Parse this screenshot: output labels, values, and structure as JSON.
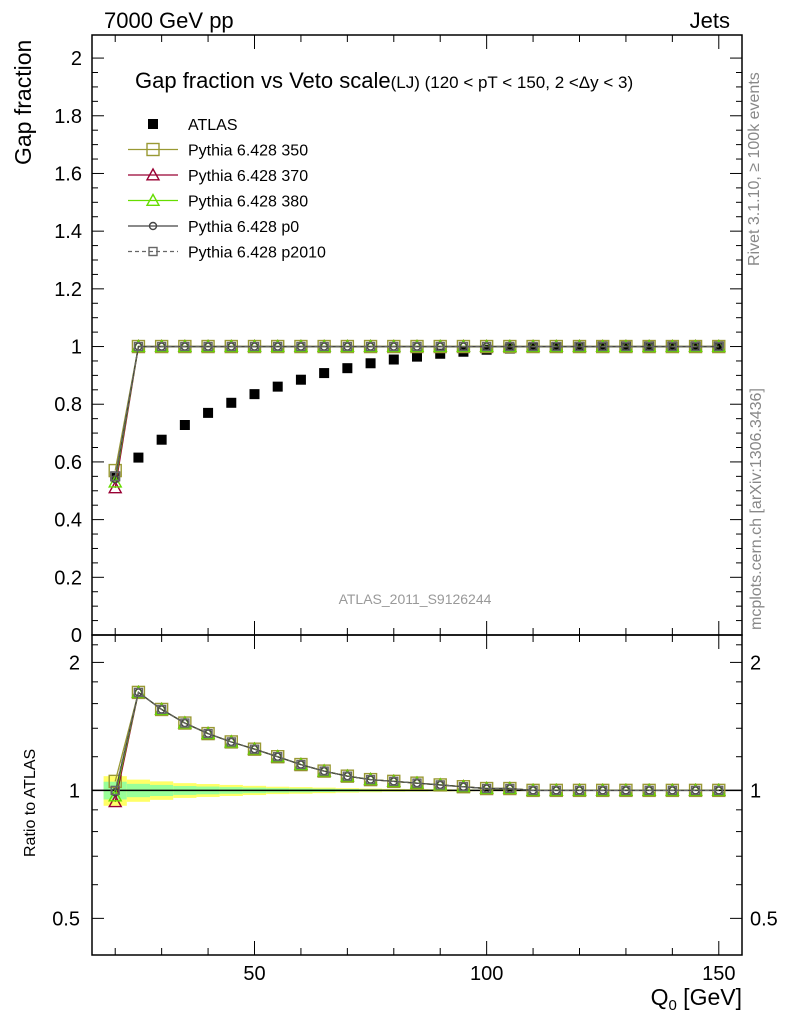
{
  "header": {
    "energy": "7000 GeV pp",
    "category": "Jets",
    "rivet_info": "Rivet 3.1.10, ≥ 100k events",
    "mcplots_info": "mcplots.cern.ch [arXiv:1306.3436]"
  },
  "chart_data": [
    {
      "type": "line",
      "panel": "main",
      "title": "Gap fraction vs Veto scale",
      "subtitle": "(LJ) (120 < pT < 150, 2 <Δy < 3)",
      "xlabel": "Q_0 [GeV]",
      "ylabel": "Gap fraction",
      "watermark": "ATLAS_2011_S9126244",
      "xlim": [
        15,
        155
      ],
      "ylim": [
        0,
        2.08
      ],
      "yticks": [
        "0",
        "0.2",
        "0.4",
        "0.6",
        "0.8",
        "1",
        "1.2",
        "1.4",
        "1.6",
        "1.8",
        "2"
      ],
      "legend_position": "top-left",
      "x": [
        20,
        25,
        30,
        35,
        40,
        45,
        50,
        55,
        60,
        65,
        70,
        75,
        80,
        85,
        90,
        95,
        100,
        105,
        110,
        115,
        120,
        125,
        130,
        135,
        140,
        145,
        150
      ],
      "series": [
        {
          "name": "ATLAS",
          "color": "#000000",
          "marker": "filled-square",
          "values": [
            0.55,
            0.615,
            0.677,
            0.728,
            0.77,
            0.805,
            0.835,
            0.861,
            0.885,
            0.908,
            0.925,
            0.942,
            0.955,
            0.965,
            0.975,
            0.982,
            0.989,
            0.993,
            0.996,
            0.998,
            0.999,
            1.0,
            1.0,
            1.0,
            1.0,
            1.0,
            1.0
          ]
        },
        {
          "name": "Pythia 6.428 350",
          "color": "#999933",
          "marker": "open-square",
          "values": [
            0.57,
            1,
            1,
            1,
            1,
            1,
            1,
            1,
            1,
            1,
            1,
            1,
            1,
            1,
            1,
            1,
            1,
            1,
            1,
            1,
            1,
            1,
            1,
            1,
            1,
            1,
            1
          ]
        },
        {
          "name": "Pythia 6.428 370",
          "color": "#990033",
          "marker": "open-triangle",
          "values": [
            0.51,
            1,
            1,
            1,
            1,
            1,
            1,
            1,
            1,
            1,
            1,
            1,
            1,
            1,
            1,
            1,
            1,
            1,
            1,
            1,
            1,
            1,
            1,
            1,
            1,
            1,
            1
          ]
        },
        {
          "name": "Pythia 6.428 380",
          "color": "#66dd00",
          "marker": "open-triangle",
          "values": [
            0.53,
            1,
            1,
            1,
            1,
            1,
            1,
            1,
            1,
            1,
            1,
            1,
            1,
            1,
            1,
            1,
            1,
            1,
            1,
            1,
            1,
            1,
            1,
            1,
            1,
            1,
            1
          ]
        },
        {
          "name": "Pythia 6.428 p0",
          "color": "#444444",
          "marker": "open-circle",
          "values": [
            0.54,
            1,
            1,
            1,
            1,
            1,
            1,
            1,
            1,
            1,
            1,
            1,
            1,
            1,
            1,
            1,
            1,
            1,
            1,
            1,
            1,
            1,
            1,
            1,
            1,
            1,
            1
          ]
        },
        {
          "name": "Pythia 6.428 p2010",
          "color": "#666666",
          "marker": "open-square-dashed",
          "values": [
            0.55,
            1,
            1,
            1,
            1,
            1,
            1,
            1,
            1,
            1,
            1,
            1,
            1,
            1,
            1,
            1,
            1,
            1,
            1,
            1,
            1,
            1,
            1,
            1,
            1,
            1,
            1
          ]
        }
      ]
    },
    {
      "type": "line",
      "panel": "ratio",
      "ylabel": "Ratio to ATLAS",
      "xlabel": "Q_0 [GeV]",
      "xlim": [
        15,
        155
      ],
      "ylim": [
        0.41,
        2.32
      ],
      "log_scale_y": true,
      "yticks": [
        "0.5",
        "1",
        "2"
      ],
      "xticks": [
        "50",
        "100",
        "150"
      ],
      "band_colors": [
        "#ffff66",
        "#99ff99"
      ],
      "x": [
        20,
        25,
        30,
        35,
        40,
        45,
        50,
        55,
        60,
        65,
        70,
        75,
        80,
        85,
        90,
        95,
        100,
        105,
        110,
        115,
        120,
        125,
        130,
        135,
        140,
        145,
        150
      ],
      "series": [
        {
          "name": "Pythia 6.428 350",
          "color": "#999933",
          "marker": "open-square",
          "values": [
            1.05,
            1.7,
            1.55,
            1.44,
            1.36,
            1.3,
            1.25,
            1.2,
            1.15,
            1.11,
            1.08,
            1.06,
            1.05,
            1.04,
            1.03,
            1.02,
            1.01,
            1.01,
            1.0,
            1.0,
            1.0,
            1.0,
            1.0,
            1.0,
            1.0,
            1.0,
            1.0
          ]
        },
        {
          "name": "Pythia 6.428 370",
          "color": "#990033",
          "marker": "open-triangle",
          "values": [
            0.94,
            1.7,
            1.55,
            1.44,
            1.36,
            1.3,
            1.25,
            1.2,
            1.15,
            1.11,
            1.08,
            1.06,
            1.05,
            1.04,
            1.03,
            1.02,
            1.01,
            1.01,
            1.0,
            1.0,
            1.0,
            1.0,
            1.0,
            1.0,
            1.0,
            1.0,
            1.0
          ]
        },
        {
          "name": "Pythia 6.428 380",
          "color": "#66dd00",
          "marker": "open-triangle",
          "values": [
            0.97,
            1.7,
            1.55,
            1.44,
            1.36,
            1.3,
            1.25,
            1.2,
            1.15,
            1.11,
            1.08,
            1.06,
            1.05,
            1.04,
            1.03,
            1.02,
            1.01,
            1.01,
            1.0,
            1.0,
            1.0,
            1.0,
            1.0,
            1.0,
            1.0,
            1.0,
            1.0
          ]
        },
        {
          "name": "Pythia 6.428 p0",
          "color": "#444444",
          "marker": "open-circle",
          "values": [
            0.99,
            1.7,
            1.55,
            1.44,
            1.36,
            1.3,
            1.25,
            1.2,
            1.15,
            1.11,
            1.08,
            1.06,
            1.05,
            1.04,
            1.03,
            1.02,
            1.01,
            1.01,
            1.0,
            1.0,
            1.0,
            1.0,
            1.0,
            1.0,
            1.0,
            1.0,
            1.0
          ]
        },
        {
          "name": "Pythia 6.428 p2010",
          "color": "#666666",
          "marker": "open-square-dashed",
          "values": [
            1.0,
            1.7,
            1.55,
            1.44,
            1.36,
            1.3,
            1.25,
            1.2,
            1.15,
            1.11,
            1.08,
            1.06,
            1.05,
            1.04,
            1.03,
            1.02,
            1.01,
            1.01,
            1.0,
            1.0,
            1.0,
            1.0,
            1.0,
            1.0,
            1.0,
            1.0,
            1.0
          ]
        }
      ]
    }
  ]
}
